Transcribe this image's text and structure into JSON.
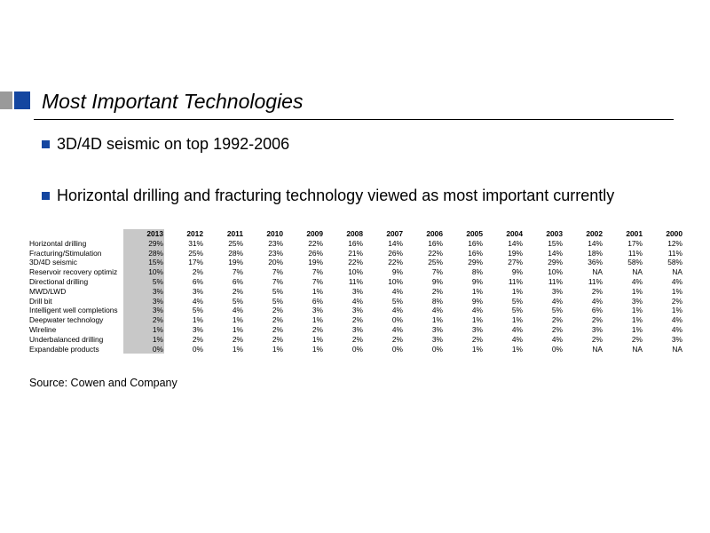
{
  "slide": {
    "title": "Most Important Technologies",
    "bullets": [
      "3D/4D seismic on top 1992-2006",
      "Horizontal drilling and fracturing technology viewed as most important currently"
    ],
    "source": "Source: Cowen and Company",
    "colors": {
      "accent": "#1446a0",
      "marker_gray": "#9a9a9a",
      "highlight": "#c8c8c8"
    }
  },
  "chart_data": {
    "type": "table",
    "title": "",
    "columns": [
      "2013",
      "2012",
      "2011",
      "2010",
      "2009",
      "2008",
      "2007",
      "2006",
      "2005",
      "2004",
      "2003",
      "2002",
      "2001",
      "2000"
    ],
    "highlighted_column": "2013",
    "rows": [
      {
        "label": "Horizontal drilling",
        "values": [
          "29%",
          "31%",
          "25%",
          "23%",
          "22%",
          "16%",
          "14%",
          "16%",
          "16%",
          "14%",
          "15%",
          "14%",
          "17%",
          "12%"
        ]
      },
      {
        "label": "Fracturing/Stimulation",
        "values": [
          "28%",
          "25%",
          "28%",
          "23%",
          "26%",
          "21%",
          "26%",
          "22%",
          "16%",
          "19%",
          "14%",
          "18%",
          "11%",
          "11%"
        ]
      },
      {
        "label": "3D/4D seismic",
        "values": [
          "15%",
          "17%",
          "19%",
          "20%",
          "19%",
          "22%",
          "22%",
          "25%",
          "29%",
          "27%",
          "29%",
          "36%",
          "58%",
          "58%"
        ]
      },
      {
        "label": "Reservoir recovery optimiz",
        "values": [
          "10%",
          "2%",
          "7%",
          "7%",
          "7%",
          "10%",
          "9%",
          "7%",
          "8%",
          "9%",
          "10%",
          "NA",
          "NA",
          "NA"
        ]
      },
      {
        "label": "Directional drilling",
        "values": [
          "5%",
          "6%",
          "6%",
          "7%",
          "7%",
          "11%",
          "10%",
          "9%",
          "9%",
          "11%",
          "11%",
          "11%",
          "4%",
          "4%"
        ]
      },
      {
        "label": "MWD/LWD",
        "values": [
          "3%",
          "3%",
          "2%",
          "5%",
          "1%",
          "3%",
          "4%",
          "2%",
          "1%",
          "1%",
          "3%",
          "2%",
          "1%",
          "1%"
        ]
      },
      {
        "label": "Drill bit",
        "values": [
          "3%",
          "4%",
          "5%",
          "5%",
          "6%",
          "4%",
          "5%",
          "8%",
          "9%",
          "5%",
          "4%",
          "4%",
          "3%",
          "2%"
        ]
      },
      {
        "label": "Intelligent well completions",
        "values": [
          "3%",
          "5%",
          "4%",
          "2%",
          "3%",
          "3%",
          "4%",
          "4%",
          "4%",
          "5%",
          "5%",
          "6%",
          "1%",
          "1%"
        ]
      },
      {
        "label": "Deepwater technology",
        "values": [
          "2%",
          "1%",
          "1%",
          "2%",
          "1%",
          "2%",
          "0%",
          "1%",
          "1%",
          "1%",
          "2%",
          "2%",
          "1%",
          "4%"
        ]
      },
      {
        "label": "Wireline",
        "values": [
          "1%",
          "3%",
          "1%",
          "2%",
          "2%",
          "3%",
          "4%",
          "3%",
          "3%",
          "4%",
          "2%",
          "3%",
          "1%",
          "4%"
        ]
      },
      {
        "label": "Underbalanced drilling",
        "values": [
          "1%",
          "2%",
          "2%",
          "2%",
          "1%",
          "2%",
          "2%",
          "3%",
          "2%",
          "4%",
          "4%",
          "2%",
          "2%",
          "3%"
        ]
      },
      {
        "label": "Expandable products",
        "values": [
          "0%",
          "0%",
          "1%",
          "1%",
          "1%",
          "0%",
          "0%",
          "0%",
          "1%",
          "1%",
          "0%",
          "NA",
          "NA",
          "NA"
        ]
      }
    ]
  }
}
